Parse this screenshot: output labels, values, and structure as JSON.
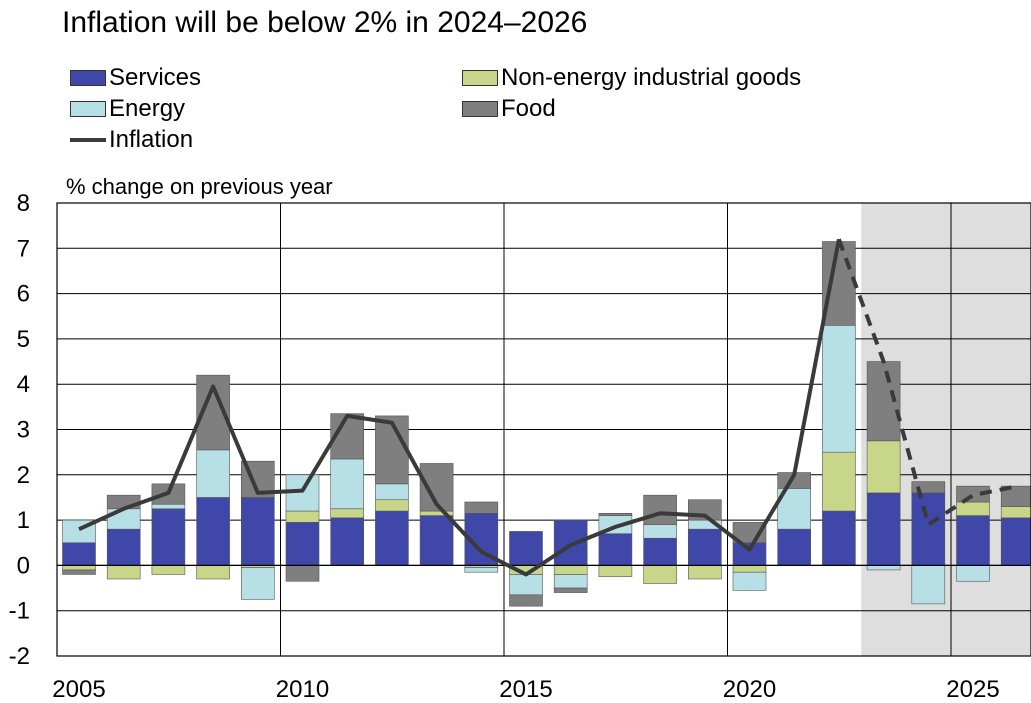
{
  "title": "Inflation will be below 2% in 2024–2026",
  "legend": [
    {
      "label": "Services",
      "color": "#3f48a8",
      "kind": "box"
    },
    {
      "label": "Non-energy industrial goods",
      "color": "#c8d68a",
      "kind": "box"
    },
    {
      "label": "Energy",
      "color": "#b7e0e6",
      "kind": "box"
    },
    {
      "label": "Food",
      "color": "#7f7f7f",
      "kind": "box"
    },
    {
      "label": "Inflation",
      "color": "#3a3a3a",
      "kind": "line"
    }
  ],
  "chart_data": {
    "type": "bar",
    "stacked": true,
    "title": "Inflation will be below 2% in 2024–2026",
    "ylabel": "% change on previous year",
    "xlabel": "",
    "ylim": [
      -2,
      8
    ],
    "xlim": [
      2005,
      2026
    ],
    "yticks": [
      -2,
      -1,
      0,
      1,
      2,
      3,
      4,
      5,
      6,
      7,
      8
    ],
    "xticks": [
      2005,
      2010,
      2015,
      2020,
      2025
    ],
    "grid": true,
    "legend_position": "top",
    "forecast_shading_from": 2022.5,
    "x": [
      2005,
      2006,
      2007,
      2008,
      2009,
      2010,
      2011,
      2012,
      2013,
      2014,
      2015,
      2016,
      2017,
      2018,
      2019,
      2020,
      2021,
      2022,
      2023,
      2024,
      2025,
      2026
    ],
    "series": [
      {
        "name": "Services",
        "color": "#3f48a8",
        "values": [
          0.5,
          0.8,
          1.25,
          1.5,
          1.5,
          0.95,
          1.05,
          1.2,
          1.1,
          1.15,
          0.75,
          1.0,
          0.7,
          0.6,
          0.8,
          0.5,
          0.8,
          1.2,
          1.6,
          1.6,
          1.1,
          1.05
        ]
      },
      {
        "name": "Non-energy industrial goods",
        "color": "#c8d68a",
        "values": [
          -0.1,
          -0.3,
          -0.2,
          -0.3,
          -0.05,
          0.25,
          0.2,
          0.25,
          0.1,
          -0.05,
          -0.2,
          -0.2,
          -0.25,
          -0.4,
          -0.3,
          -0.15,
          0.0,
          1.3,
          1.15,
          0.0,
          0.3,
          0.25
        ]
      },
      {
        "name": "Energy",
        "color": "#b7e0e6",
        "values": [
          0.5,
          0.45,
          0.1,
          1.05,
          -0.7,
          0.8,
          1.1,
          0.35,
          0.0,
          -0.1,
          -0.45,
          -0.3,
          0.4,
          0.3,
          0.2,
          -0.4,
          0.9,
          2.8,
          -0.1,
          -0.85,
          -0.35,
          0.0
        ]
      },
      {
        "name": "Food",
        "color": "#7f7f7f",
        "values": [
          -0.1,
          0.3,
          0.45,
          1.65,
          0.8,
          -0.35,
          1.0,
          1.5,
          1.05,
          0.25,
          -0.25,
          -0.1,
          0.05,
          0.65,
          0.45,
          0.45,
          0.35,
          1.85,
          1.75,
          0.25,
          0.35,
          0.45
        ]
      },
      {
        "name": "Inflation",
        "color": "#3a3a3a",
        "kind": "line",
        "values": [
          0.8,
          1.25,
          1.6,
          3.95,
          1.6,
          1.65,
          3.3,
          3.15,
          1.35,
          0.3,
          -0.2,
          0.45,
          0.85,
          1.15,
          1.1,
          0.35,
          2.0,
          7.2,
          4.5,
          0.9,
          1.55,
          1.75
        ],
        "forecast_from": 2022
      }
    ]
  }
}
